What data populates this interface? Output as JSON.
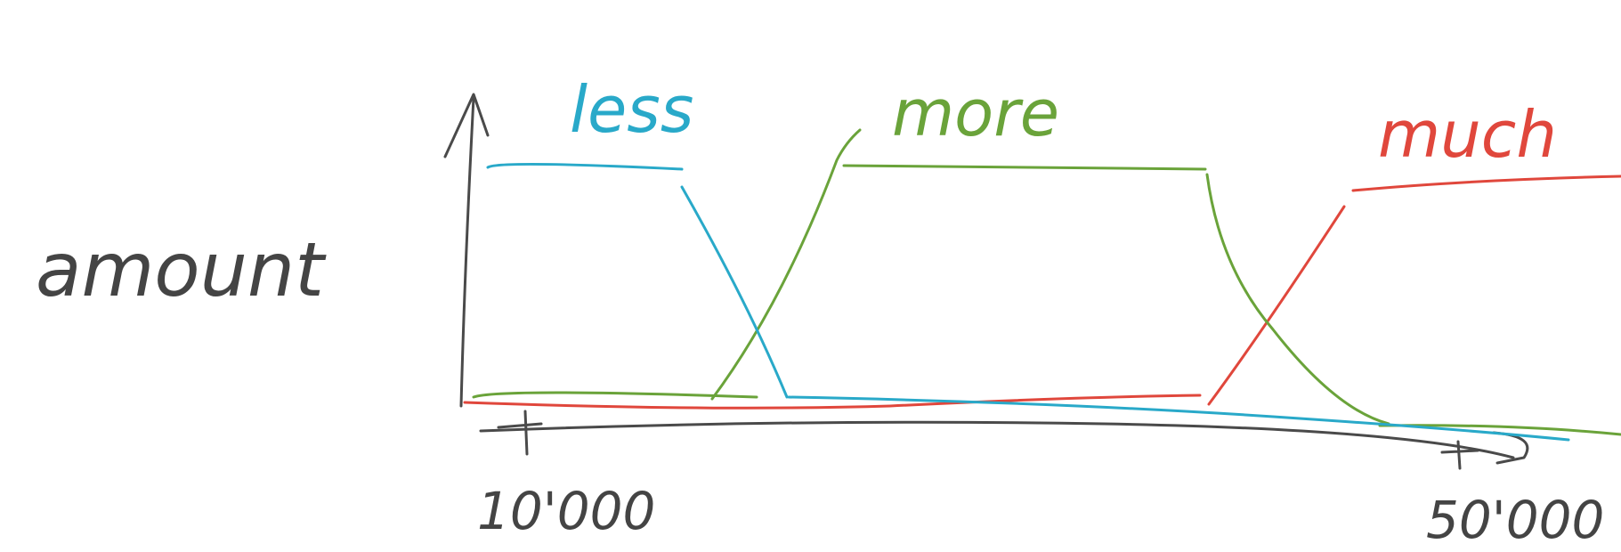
{
  "diagram": {
    "ylabel": "amount",
    "x_ticks": [
      "10'000",
      "50'000"
    ],
    "series": [
      {
        "name": "less",
        "color": "#29a9c9"
      },
      {
        "name": "more",
        "color": "#6aa33a"
      },
      {
        "name": "much",
        "color": "#e0473c"
      }
    ],
    "axis_color": "#4a4a4a"
  }
}
